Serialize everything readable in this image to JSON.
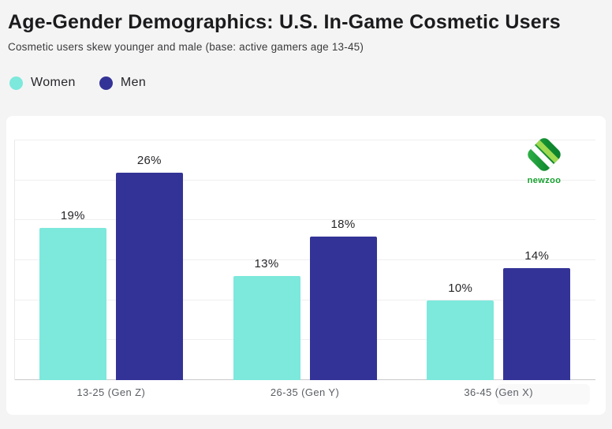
{
  "header": {
    "title": "Age-Gender Demographics: U.S. In-Game Cosmetic Users",
    "subtitle": "Cosmetic users skew younger and male (base: active gamers age 13-45)"
  },
  "legend": {
    "items": [
      {
        "label": "Women",
        "color": "#7de8dc"
      },
      {
        "label": "Men",
        "color": "#333397"
      }
    ]
  },
  "brand": {
    "logo_text": "newzoo",
    "logo_color": "#16a02e"
  },
  "colors": {
    "page_background": "#f4f4f5",
    "card_background": "#ffffff",
    "women_bar": "#7de8dc",
    "men_bar": "#333397",
    "title_text": "#1b1b1d",
    "gridline": "#efeff1",
    "baseline": "#c9c9cc"
  },
  "chart_data": {
    "type": "bar",
    "title": "Age-Gender Demographics: U.S. In-Game Cosmetic Users",
    "subtitle": "Cosmetic users skew younger and male (base: active gamers age 13-45)",
    "categories": [
      "13-25 (Gen Z)",
      "26-35 (Gen Y)",
      "36-45 (Gen X)"
    ],
    "series": [
      {
        "name": "Women",
        "color": "#7de8dc",
        "values": [
          19,
          13,
          10
        ]
      },
      {
        "name": "Men",
        "color": "#333397",
        "values": [
          26,
          18,
          14
        ]
      }
    ],
    "value_label_format": "{v}%",
    "xlabel": "",
    "ylabel": "",
    "ylim": [
      0,
      30
    ],
    "grid_step": 5,
    "grid": true,
    "y_tick_labels_shown": false,
    "legend_position": "top-left-above-chart"
  }
}
